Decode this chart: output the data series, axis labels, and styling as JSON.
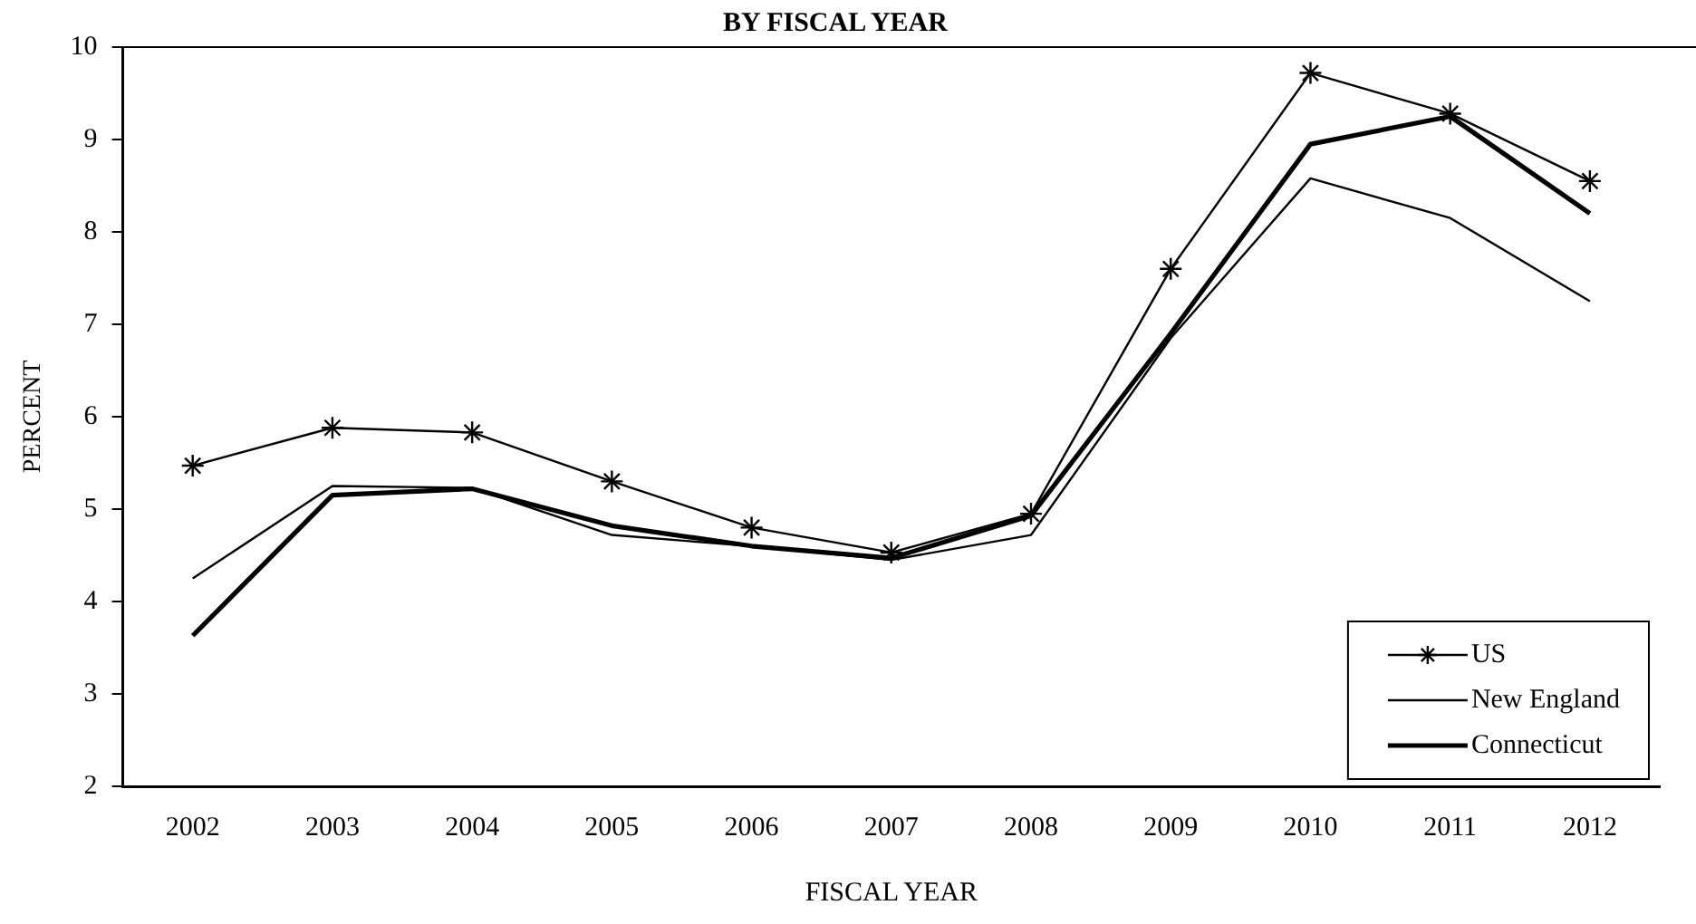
{
  "chart_data": {
    "type": "line",
    "title": "BY FISCAL YEAR",
    "xlabel": "FISCAL YEAR",
    "ylabel": "PERCENT",
    "categories": [
      "2002",
      "2003",
      "2004",
      "2005",
      "2006",
      "2007",
      "2008",
      "2009",
      "2010",
      "2011",
      "2012"
    ],
    "series": [
      {
        "name": "US",
        "color": "#000000",
        "marker": "cross",
        "values": [
          5.47,
          5.88,
          5.83,
          5.3,
          4.8,
          4.53,
          4.95,
          7.6,
          9.72,
          9.28,
          8.55
        ]
      },
      {
        "name": "New England",
        "color": "#000000",
        "marker": "none",
        "values": [
          4.25,
          5.25,
          5.23,
          4.72,
          4.6,
          4.45,
          4.72,
          6.85,
          8.58,
          8.15,
          7.25
        ]
      },
      {
        "name": "Connecticut",
        "color": "#000000",
        "marker": "none",
        "values": [
          3.63,
          5.15,
          5.22,
          4.82,
          4.6,
          4.47,
          4.93,
          6.9,
          8.95,
          9.25,
          8.2
        ]
      }
    ],
    "ylim": [
      2,
      10
    ],
    "yticks": [
      2,
      3,
      4,
      5,
      6,
      7,
      8,
      9,
      10
    ],
    "grid": false,
    "legend": "bottom right",
    "line_style": "solid"
  }
}
